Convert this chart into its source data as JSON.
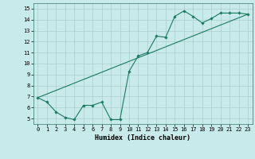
{
  "xlabel": "Humidex (Indice chaleur)",
  "line_color": "#1a7a5e",
  "background_color": "#c8eaea",
  "grid_color": "#aacece",
  "xlim": [
    -0.5,
    23.5
  ],
  "ylim": [
    4.5,
    15.5
  ],
  "xticks": [
    0,
    1,
    2,
    3,
    4,
    5,
    6,
    7,
    8,
    9,
    10,
    11,
    12,
    13,
    14,
    15,
    16,
    17,
    18,
    19,
    20,
    21,
    22,
    23
  ],
  "yticks": [
    5,
    6,
    7,
    8,
    9,
    10,
    11,
    12,
    13,
    14,
    15
  ],
  "line1_x": [
    0,
    1,
    2,
    3,
    4,
    5,
    6,
    7,
    8,
    9,
    10,
    11,
    12,
    13,
    14,
    15,
    16,
    17,
    18,
    19,
    20,
    21,
    22,
    23
  ],
  "line1_y": [
    6.9,
    6.5,
    5.6,
    5.1,
    4.9,
    6.2,
    6.2,
    6.5,
    4.9,
    4.9,
    9.3,
    10.7,
    11.0,
    12.5,
    12.4,
    14.3,
    14.8,
    14.3,
    13.7,
    14.1,
    14.6,
    14.6,
    14.6,
    14.5
  ],
  "line2_x": [
    0,
    23
  ],
  "line2_y": [
    6.9,
    14.5
  ],
  "tick_fontsize": 5.0,
  "xlabel_fontsize": 6.0
}
